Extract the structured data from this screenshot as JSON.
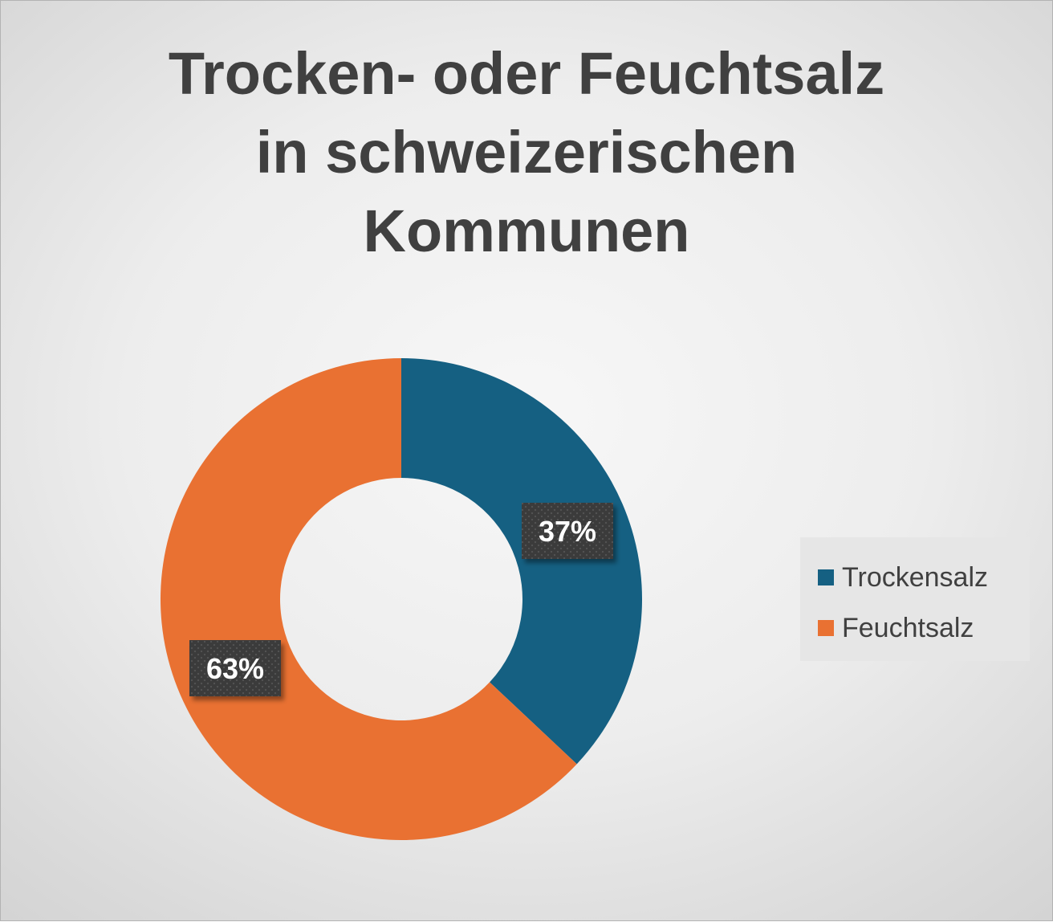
{
  "title_lines": [
    "Trocken- oder Feuchtsalz",
    "in schweizerischen",
    "Kommunen"
  ],
  "chart_data": {
    "type": "pie",
    "variant": "doughnut",
    "title": "Trocken- oder Feuchtsalz in schweizerischen Kommunen",
    "categories": [
      "Trockensalz",
      "Feuchtsalz"
    ],
    "values": [
      37,
      63
    ],
    "value_labels": [
      "37%",
      "63%"
    ],
    "colors": [
      "#156082",
      "#e97132"
    ],
    "legend_position": "right"
  }
}
